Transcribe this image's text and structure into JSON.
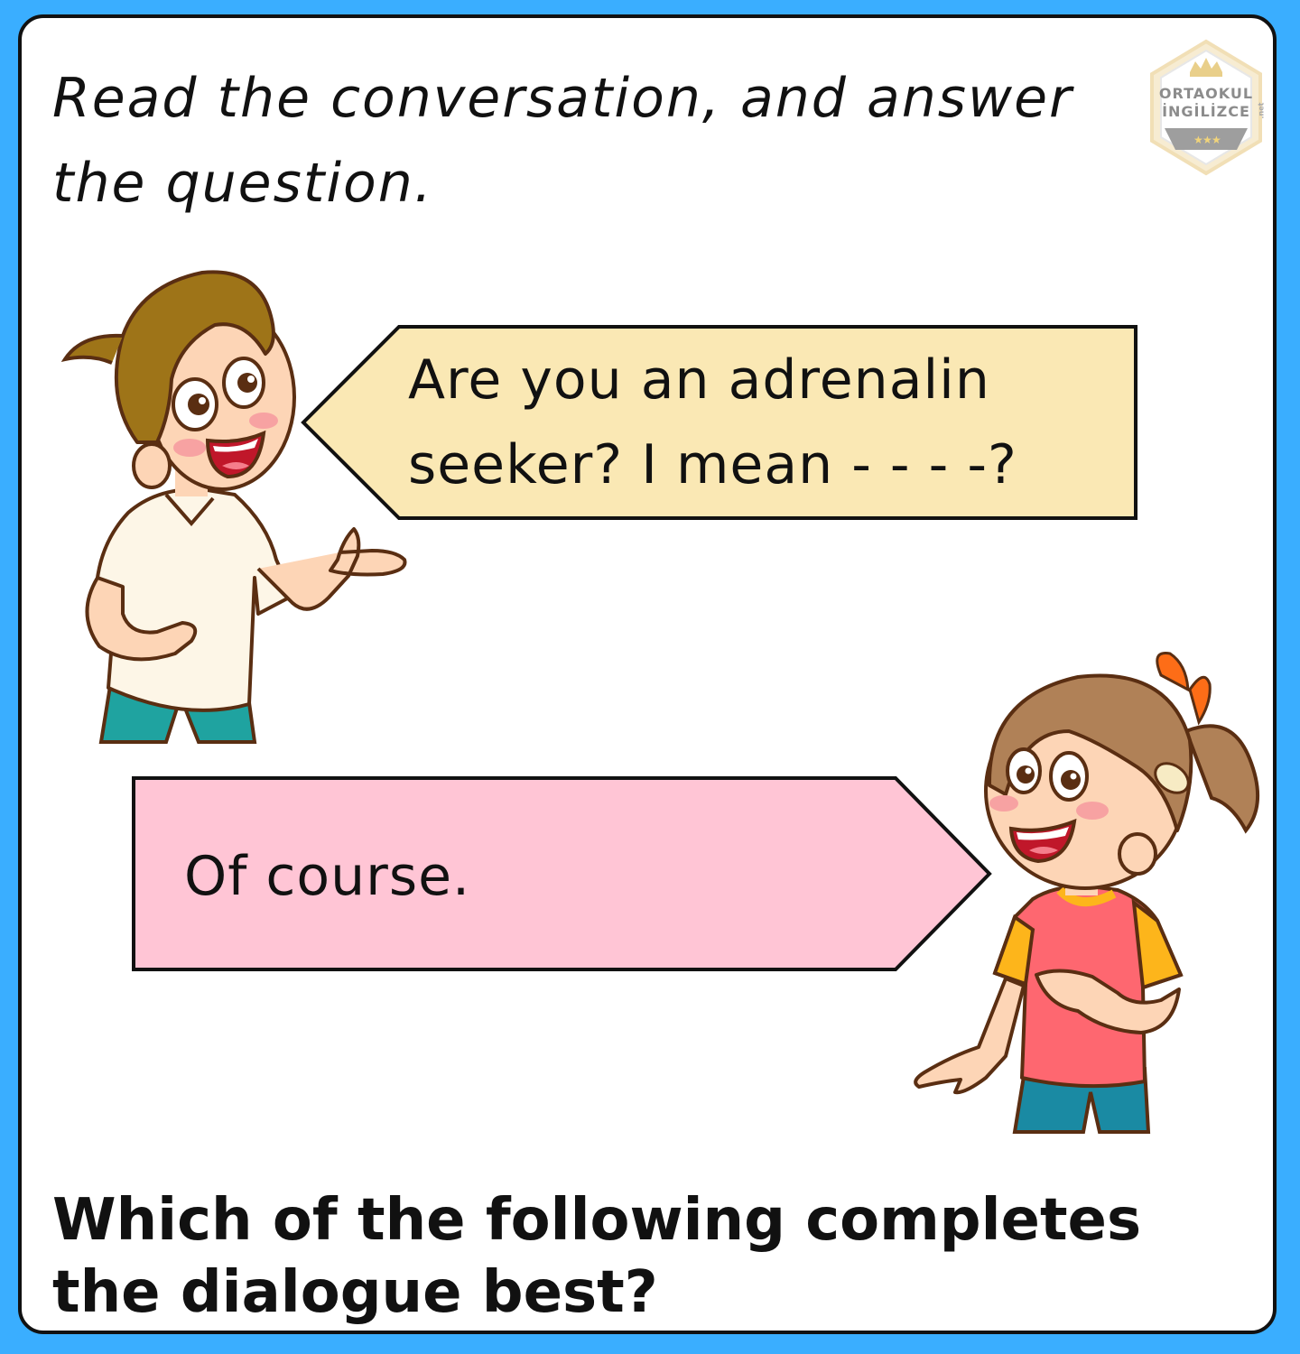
{
  "instruction": "Read the conversation, and answer the question.",
  "logo": {
    "line1": "ORTAOKUL",
    "line2": "İNGİLİZCE",
    "suffix": ".net"
  },
  "dialogue": {
    "boy_line": "Are you an adrenalin seeker? I mean - - - -?",
    "girl_line": "Of course."
  },
  "question": "Which of the following completes the dialogue best?",
  "colors": {
    "frame": "#3aaeff",
    "boy_bubble": "#fae8b4",
    "girl_bubble": "#ffc5d5"
  }
}
